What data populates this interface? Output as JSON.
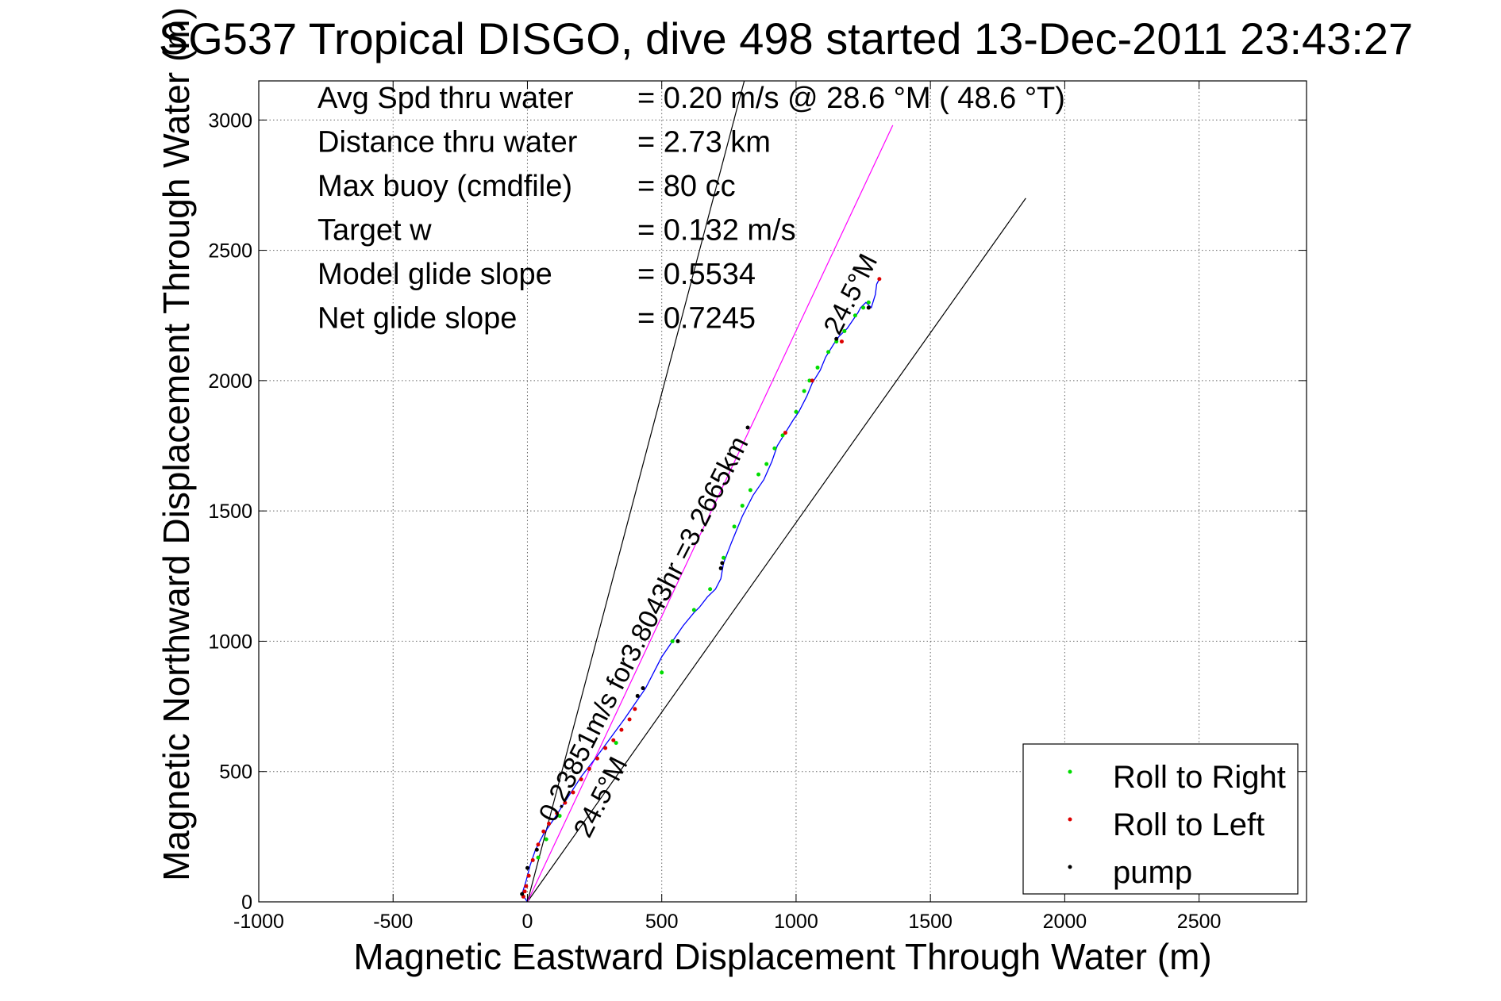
{
  "chart_data": {
    "type": "scatter",
    "title": "SG537 Tropical DISGO, dive 498 started 13-Dec-2011 23:43:27",
    "xlabel": "Magnetic Eastward Displacement Through Water (m)",
    "ylabel": "Magnetic Northward Displacement Through Water (m)",
    "xlim": [
      -1000,
      2900
    ],
    "ylim": [
      0,
      3150
    ],
    "xticks": [
      -1000,
      -500,
      0,
      500,
      1000,
      1500,
      2000,
      2500
    ],
    "yticks": [
      0,
      500,
      1000,
      1500,
      2000,
      2500,
      3000
    ],
    "grid": true,
    "legend_position": "bottom-right",
    "info_lines": [
      {
        "label": "Avg Spd thru water",
        "value": "=  0.20 m/s @  28.6 °M ( 48.6 °T)"
      },
      {
        "label": "Distance thru water",
        "value": "=  2.73 km"
      },
      {
        "label": "Max buoy (cmdfile)",
        "value": "= 80 cc"
      },
      {
        "label": "Target w",
        "value": "= 0.132 m/s"
      },
      {
        "label": "Model glide slope",
        "value": "= 0.5534"
      },
      {
        "label": "Net glide slope",
        "value": "= 0.7245"
      }
    ],
    "annotations": [
      {
        "text": "0.23851m/s for3.8043hr =3.2665km",
        "x": 100,
        "y": 300,
        "angle_deg": -63
      },
      {
        "text": "24.5°M",
        "x": 230,
        "y": 240,
        "angle_deg": -63
      },
      {
        "text": "24.5°M",
        "x": 1160,
        "y": 2170,
        "angle_deg": -63
      }
    ],
    "reference_lines": [
      {
        "name": "",
        "color": "#000000",
        "x": [
          0,
          820
        ],
        "y": [
          0,
          3200
        ]
      },
      {
        "name": "",
        "color": "#000000",
        "x": [
          0,
          1855
        ],
        "y": [
          0,
          2700
        ]
      },
      {
        "name": "",
        "color": "#ff00ff",
        "x": [
          0,
          1360
        ],
        "y": [
          0,
          2980
        ]
      }
    ],
    "track": {
      "name": "",
      "color": "#0000ff",
      "x": [
        0,
        -20,
        -5,
        10,
        30,
        60,
        100,
        150,
        200,
        260,
        310,
        360,
        400,
        440,
        470,
        500,
        540,
        580,
        620,
        640,
        670,
        700,
        720,
        730,
        760,
        800,
        840,
        880,
        910,
        930,
        960,
        990,
        1010,
        1040,
        1060,
        1090,
        1110,
        1140,
        1160,
        1190,
        1210,
        1230,
        1240,
        1260,
        1280,
        1295,
        1300,
        1310
      ],
      "y": [
        0,
        30,
        80,
        140,
        200,
        260,
        320,
        400,
        480,
        560,
        630,
        700,
        760,
        820,
        880,
        940,
        1000,
        1060,
        1110,
        1130,
        1170,
        1200,
        1240,
        1300,
        1380,
        1480,
        1560,
        1620,
        1690,
        1750,
        1800,
        1850,
        1880,
        1940,
        1990,
        2040,
        2090,
        2140,
        2170,
        2200,
        2230,
        2260,
        2280,
        2300,
        2280,
        2330,
        2370,
        2390
      ]
    },
    "series": [
      {
        "name": "Roll to Right",
        "color": "#00dd00",
        "x": [
          40,
          70,
          120,
          330,
          500,
          540,
          620,
          680,
          730,
          770,
          800,
          830,
          860,
          890,
          920,
          950,
          1000,
          1030,
          1050,
          1080,
          1120,
          1150,
          1180,
          1220,
          1250,
          1270
        ],
        "y": [
          170,
          240,
          330,
          610,
          880,
          1000,
          1120,
          1200,
          1320,
          1440,
          1520,
          1580,
          1640,
          1680,
          1740,
          1790,
          1880,
          1960,
          2000,
          2050,
          2110,
          2150,
          2190,
          2250,
          2280,
          2300
        ]
      },
      {
        "name": "Roll to Left",
        "color": "#dd0000",
        "x": [
          -15,
          -10,
          -5,
          5,
          20,
          40,
          60,
          80,
          110,
          140,
          170,
          200,
          230,
          260,
          290,
          320,
          350,
          380,
          400,
          960,
          1060,
          1170,
          1270,
          1310
        ],
        "y": [
          20,
          40,
          60,
          100,
          160,
          220,
          270,
          300,
          340,
          380,
          420,
          470,
          510,
          550,
          590,
          620,
          660,
          700,
          740,
          1800,
          2000,
          2150,
          2280,
          2390
        ]
      },
      {
        "name": "pump",
        "color": "#000000",
        "x": [
          -20,
          0,
          35,
          410,
          430,
          560,
          720,
          725,
          820,
          1150,
          1270
        ],
        "y": [
          30,
          130,
          200,
          790,
          820,
          1000,
          1280,
          1300,
          1820,
          2160,
          2280
        ]
      }
    ]
  }
}
